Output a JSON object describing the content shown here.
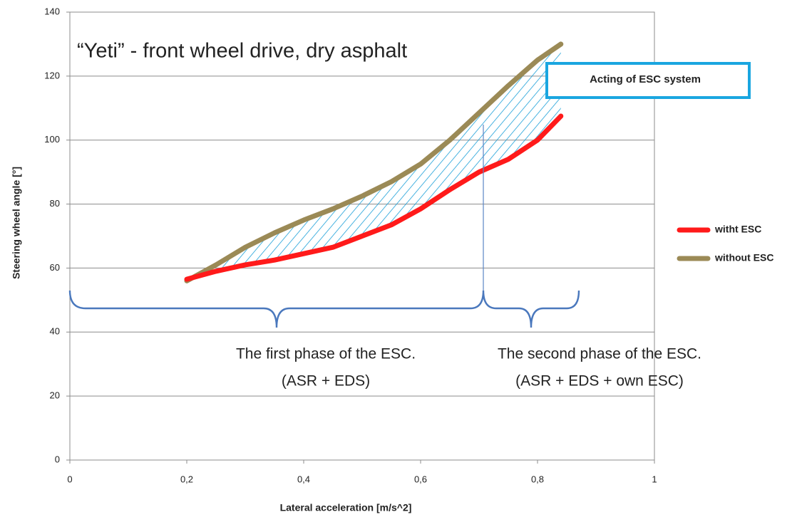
{
  "chart_data": {
    "type": "line",
    "title": "“Yeti” - front wheel drive, dry asphalt",
    "x_label": "Lateral acceleration [m/s^2]",
    "y_label": "Steering wheel angle [°]",
    "annotations": [
      "Acting of ESC system",
      "The first phase of the ESC.",
      "(ASR + EDS)",
      "The second phase of the ESC.",
      "(ASR + EDS + own ESC)"
    ],
    "x": [
      0.2,
      0.25,
      0.3,
      0.35,
      0.4,
      0.45,
      0.5,
      0.55,
      0.6,
      0.65,
      0.7,
      0.75,
      0.8,
      0.84
    ],
    "series": [
      {
        "name": "witht ESC",
        "color": "#ff1a1a",
        "values": [
          56.5,
          59,
          61,
          62.5,
          64.5,
          66.5,
          70,
          73.5,
          78.5,
          84.5,
          90,
          94,
          100,
          107.5
        ]
      },
      {
        "name": "without ESC",
        "color": "#9b8a56",
        "values": [
          56,
          61,
          66.5,
          71,
          75,
          78.5,
          82.5,
          87,
          92.5,
          100,
          108.5,
          117,
          125,
          130
        ]
      }
    ],
    "xlim": [
      0,
      1
    ],
    "xticks": [
      0,
      {
        "value": 0.2,
        "label": "0,2"
      },
      {
        "value": 0.4,
        "label": "0,4"
      },
      {
        "value": 0.6,
        "label": "0,6"
      },
      {
        "value": 0.8,
        "label": "0,8"
      },
      1
    ],
    "ylim": [
      0,
      140
    ],
    "yticks": [
      0,
      20,
      40,
      60,
      80,
      100,
      120,
      140
    ],
    "grid": true,
    "legend": "right"
  }
}
